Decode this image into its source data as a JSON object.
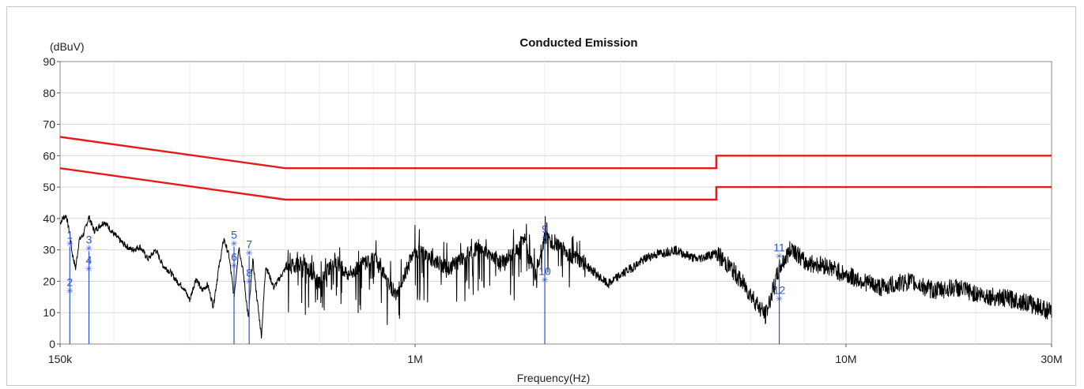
{
  "chart_data": {
    "type": "line",
    "title": "Conducted Emission",
    "ylabel": "(dBuV)",
    "xlabel": "Frequency(Hz)",
    "x_scale": "log",
    "xlim": [
      150000,
      30000000
    ],
    "ylim": [
      0,
      90
    ],
    "grid": true,
    "y_ticks": [
      0,
      10,
      20,
      30,
      40,
      50,
      60,
      70,
      80,
      90
    ],
    "x_ticks": [
      {
        "value": 150000,
        "label": "150k"
      },
      {
        "value": 1000000,
        "label": "1M"
      },
      {
        "value": 10000000,
        "label": "10M"
      },
      {
        "value": 30000000,
        "label": "30M"
      }
    ],
    "colors": {
      "limit": "#e41b1b",
      "trace": "#000000",
      "marker": "#2b55c6",
      "grid": "#d9d9d9"
    },
    "series": [
      {
        "kind": "limit",
        "x": [
          150000,
          500000,
          500000,
          5000000,
          5000000,
          30000000
        ],
        "values": [
          66,
          56,
          56,
          56,
          60,
          60
        ]
      },
      {
        "kind": "limit",
        "x": [
          150000,
          500000,
          500000,
          5000000,
          5000000,
          30000000
        ],
        "values": [
          56,
          46,
          46,
          46,
          50,
          50
        ]
      },
      {
        "kind": "measurement",
        "x": [
          150000,
          152000,
          155000,
          158000,
          160000,
          163000,
          166000,
          170000,
          175000,
          180000,
          190000,
          200000,
          210000,
          220000,
          230000,
          240000,
          250000,
          260000,
          270000,
          280000,
          290000,
          300000,
          310000,
          320000,
          330000,
          340000,
          350000,
          360000,
          370000,
          380000,
          390000,
          400000,
          410000,
          420000,
          430000,
          440000,
          450000,
          470000,
          500000,
          550000,
          600000,
          650000,
          700000,
          800000,
          900000,
          1000000,
          1200000,
          1400000,
          1600000,
          1800000,
          1900000,
          2000000,
          2200000,
          2500000,
          2800000,
          3000000,
          3500000,
          4000000,
          4500000,
          5000000,
          5500000,
          6000000,
          6500000,
          7000000,
          7500000,
          8000000,
          9000000,
          10000000,
          11000000,
          12000000,
          14000000,
          16000000,
          18000000,
          20000000,
          22000000,
          25000000,
          28000000,
          30000000
        ],
        "values": [
          38.5,
          40.0,
          41.0,
          35.0,
          29.0,
          24.0,
          33.0,
          35.0,
          40.5,
          36.0,
          39.0,
          35.0,
          32.0,
          30.0,
          31.0,
          27.0,
          30.0,
          25.0,
          23.0,
          20.0,
          18.0,
          14.0,
          21.0,
          17.0,
          19.0,
          12.0,
          24.0,
          33.5,
          28.0,
          15.0,
          31.0,
          22.0,
          8.0,
          27.0,
          14.0,
          2.5,
          25.0,
          18.0,
          24.0,
          26.0,
          19.0,
          27.0,
          22.0,
          28.0,
          16.0,
          30.0,
          24.0,
          31.0,
          26.0,
          33.0,
          22.0,
          34.5,
          30.0,
          25.0,
          19.0,
          22.0,
          28.0,
          30.0,
          27.0,
          29.0,
          23.0,
          16.0,
          9.0,
          24.0,
          31.0,
          26.0,
          25.0,
          22.0,
          20.0,
          18.0,
          20.0,
          17.0,
          18.0,
          16.0,
          15.0,
          14.0,
          12.0,
          10.0
        ]
      }
    ],
    "markers": [
      {
        "label": "1",
        "x": 158000,
        "y": 32.0
      },
      {
        "label": "2",
        "x": 158000,
        "y": 17.0
      },
      {
        "label": "3",
        "x": 175000,
        "y": 30.5
      },
      {
        "label": "4",
        "x": 175000,
        "y": 24.0
      },
      {
        "label": "5",
        "x": 380000,
        "y": 32.0
      },
      {
        "label": "6",
        "x": 380000,
        "y": 25.0
      },
      {
        "label": "7",
        "x": 412000,
        "y": 29.0
      },
      {
        "label": "8",
        "x": 412000,
        "y": 20.0
      },
      {
        "label": "9",
        "x": 2000000,
        "y": 34.0
      },
      {
        "label": "10",
        "x": 2000000,
        "y": 20.5
      },
      {
        "label": "11",
        "x": 7000000,
        "y": 28.0
      },
      {
        "label": "12",
        "x": 7000000,
        "y": 14.5
      }
    ]
  }
}
